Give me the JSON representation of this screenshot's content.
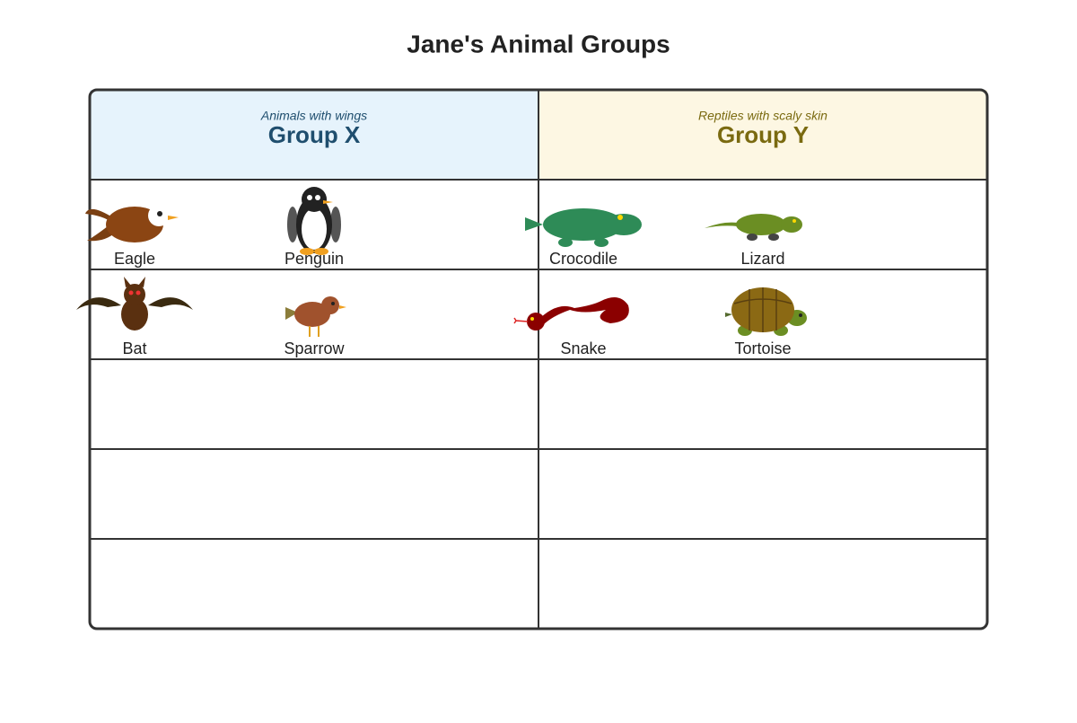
{
  "title": "Jane's Animal Groups",
  "groups": [
    {
      "subtitle": "Animals with wings",
      "name": "Group X",
      "rows": [
        [
          "Eagle",
          "Penguin"
        ],
        [
          "Bat",
          "Sparrow"
        ]
      ]
    },
    {
      "subtitle": "Reptiles with scaly skin",
      "name": "Group Y",
      "rows": [
        [
          "Crocodile",
          "Lizard"
        ],
        [
          "Snake",
          "Tortoise"
        ]
      ]
    }
  ]
}
